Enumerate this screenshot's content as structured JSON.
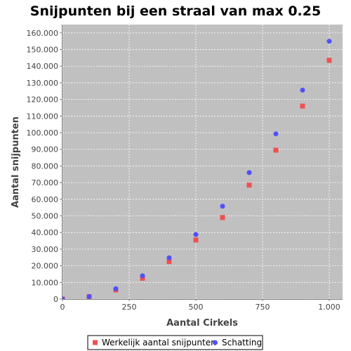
{
  "chart_data": {
    "type": "scatter",
    "title": "Snijpunten bij een straal van max 0.25",
    "xlabel": "Aantal Cirkels",
    "ylabel": "Aantal snijpunten",
    "xlim": [
      0,
      1050
    ],
    "ylim": [
      0,
      165000
    ],
    "x_ticks": [
      0,
      250,
      500,
      750,
      1000
    ],
    "x_tick_labels": [
      "0",
      "250",
      "500",
      "750",
      "1.000"
    ],
    "y_ticks": [
      0,
      10000,
      20000,
      30000,
      40000,
      50000,
      60000,
      70000,
      80000,
      90000,
      100000,
      110000,
      120000,
      130000,
      140000,
      150000,
      160000
    ],
    "y_tick_labels": [
      "0",
      "10.000",
      "20.000",
      "30.000",
      "40.000",
      "50.000",
      "60.000",
      "70.000",
      "80.000",
      "90.000",
      "100.000",
      "110.000",
      "120.000",
      "130.000",
      "140.000",
      "150.000",
      "160.000"
    ],
    "grid": true,
    "legend_position": "bottom",
    "plot_background": "#c0c0c0",
    "series": [
      {
        "name": "Werkelijk aantal snijpunten",
        "marker": "square",
        "color": "#f05050",
        "x": [
          0,
          100,
          200,
          300,
          400,
          500,
          600,
          700,
          800,
          900,
          1000
        ],
        "y": [
          0,
          1500,
          5500,
          12500,
          22500,
          35500,
          49000,
          68500,
          89500,
          116000,
          143500
        ]
      },
      {
        "name": "Schatting",
        "marker": "circle",
        "color": "#5050ff",
        "x": [
          0,
          100,
          200,
          300,
          400,
          500,
          600,
          700,
          800,
          900,
          1000
        ],
        "y": [
          0,
          1500,
          6200,
          14000,
          24800,
          38800,
          55800,
          76000,
          99300,
          125600,
          155000
        ]
      }
    ]
  }
}
